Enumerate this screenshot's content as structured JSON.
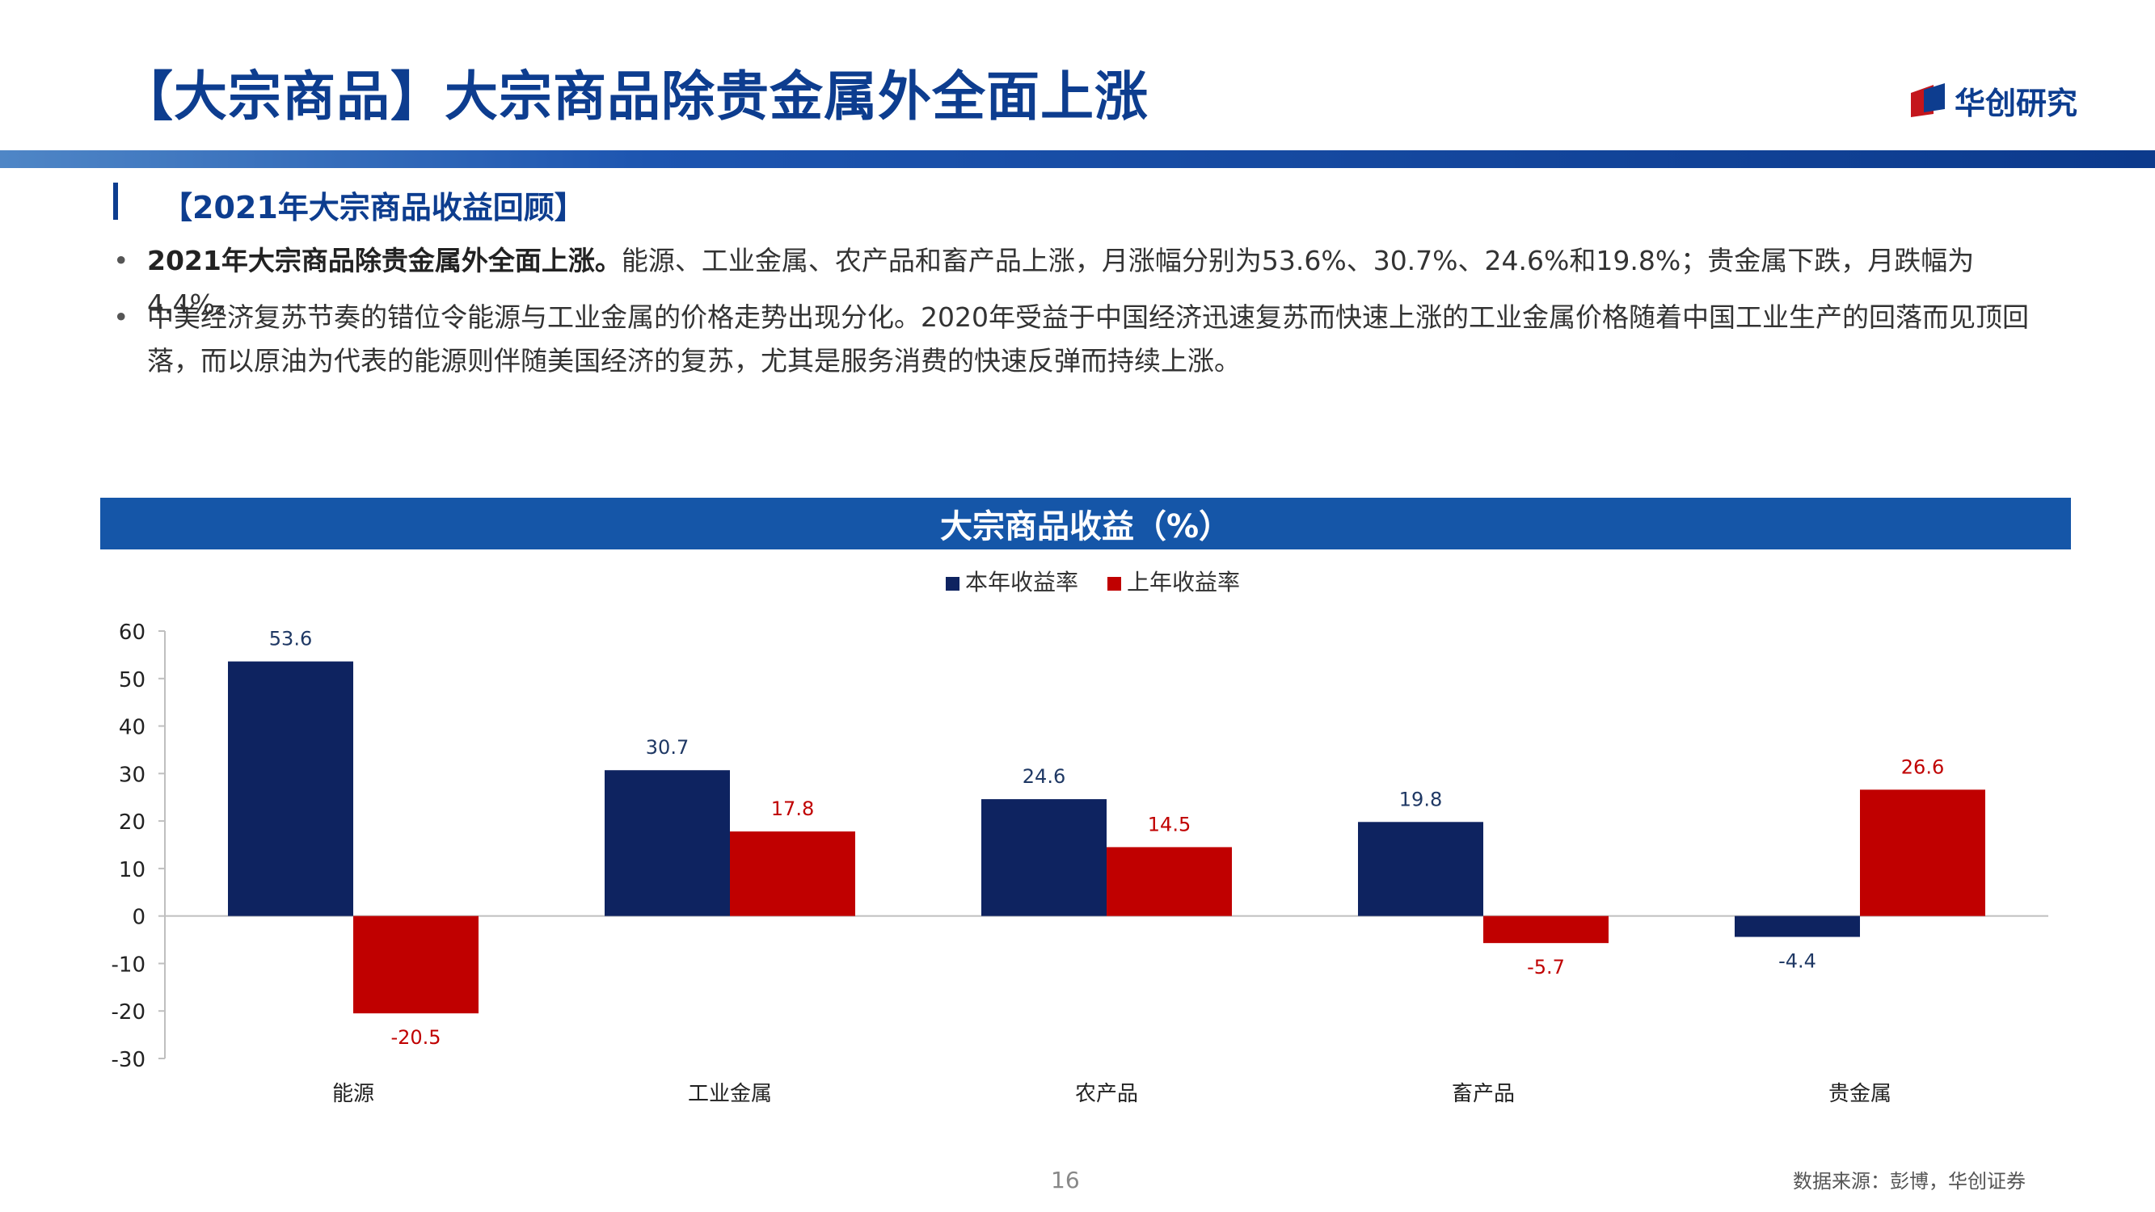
{
  "slide": {
    "title": "【大宗商品】大宗商品除贵金属外全面上涨",
    "logo_text": "华创研究",
    "logo_colors": [
      "#c4161c",
      "#0d3d8f"
    ],
    "page_number": "16",
    "source": "数据来源：彭博，华创证券"
  },
  "section": {
    "heading": "【2021年大宗商品收益回顾】"
  },
  "bullets": [
    {
      "bold": "2021年大宗商品除贵金属外全面上涨。",
      "text": "能源、工业金属、农产品和畜产品上涨，月涨幅分别为53.6%、30.7%、24.6%和19.8%；贵金属下跌，月跌幅为4.4%。"
    },
    {
      "bold": "",
      "text": "中美经济复苏节奏的错位令能源与工业金属的价格走势出现分化。2020年受益于中国经济迅速复苏而快速上涨的工业金属价格随着中国工业生产的回落而见顶回落，而以原油为代表的能源则伴随美国经济的复苏，尤其是服务消费的快速反弹而持续上涨。"
    }
  ],
  "chart_data": {
    "type": "bar",
    "title": "大宗商品收益（%）",
    "categories": [
      "能源",
      "工业金属",
      "农产品",
      "畜产品",
      "贵金属"
    ],
    "series": [
      {
        "name": "本年收益率",
        "color": "#0e2360",
        "values": [
          53.6,
          30.7,
          24.6,
          19.8,
          -4.4
        ]
      },
      {
        "name": "上年收益率",
        "color": "#c00000",
        "values": [
          -20.5,
          17.8,
          14.5,
          -5.7,
          26.6
        ]
      }
    ],
    "ylim": [
      -30,
      60
    ],
    "yticks": [
      60,
      50,
      40,
      30,
      20,
      10,
      0,
      -10,
      -20,
      -30
    ],
    "data_labels": true,
    "legend_position": "top-center",
    "grid": false,
    "xlabel": "",
    "ylabel": ""
  }
}
